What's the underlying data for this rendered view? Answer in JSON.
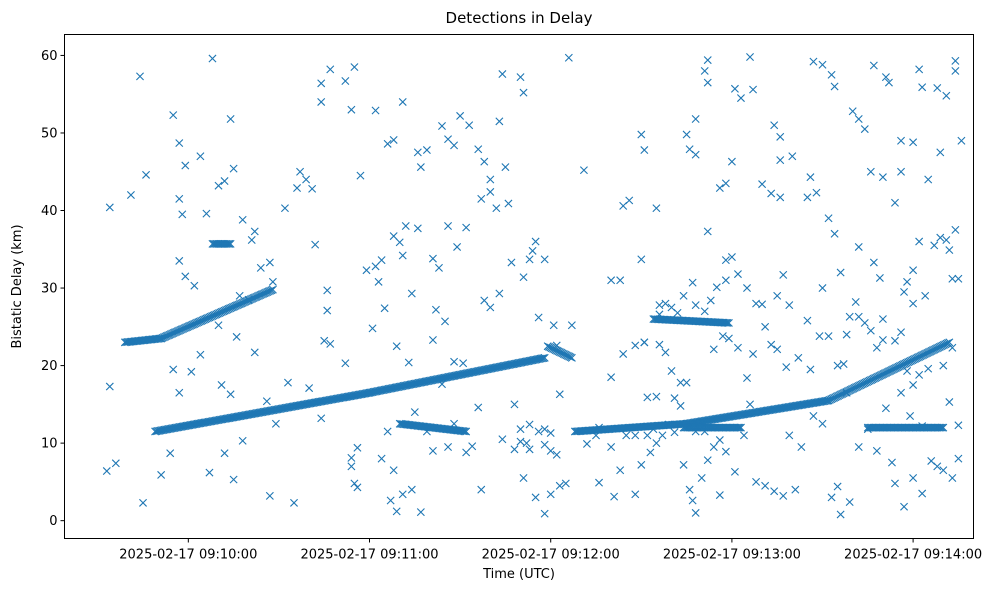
{
  "chart_data": {
    "type": "scatter",
    "title": "Detections in Delay",
    "xlabel": "Time (UTC)",
    "ylabel": "Bistatic Delay (km)",
    "x_ticks": [
      "2025-02-17 09:10:00",
      "2025-02-17 09:11:00",
      "2025-02-17 09:12:00",
      "2025-02-17 09:13:00",
      "2025-02-17 09:14:00"
    ],
    "y_ticks": [
      "0",
      "10",
      "20",
      "30",
      "40",
      "50",
      "60"
    ],
    "x_range_seconds_after_0910": [
      -41,
      260
    ],
    "y_range": [
      -2.3,
      62.7
    ],
    "marker": "x",
    "color": "#1f77b4",
    "grid": false,
    "tracks": [
      {
        "t_start": -11,
        "t_end": 60,
        "delay_start": 11.5,
        "delay_end": 16.5
      },
      {
        "t_start": 60,
        "t_end": 118,
        "delay_start": 16.5,
        "delay_end": 21.0
      },
      {
        "t_start": 128,
        "t_end": 165,
        "delay_start": 11.5,
        "delay_end": 12.5
      },
      {
        "t_start": 165,
        "t_end": 212,
        "delay_start": 12.5,
        "delay_end": 15.5
      },
      {
        "t_start": 212,
        "t_end": 252,
        "delay_start": 15.5,
        "delay_end": 23.0
      },
      {
        "t_start": -21,
        "t_end": -9,
        "delay_start": 23.0,
        "delay_end": 23.5
      },
      {
        "t_start": -9,
        "t_end": 28,
        "delay_start": 23.5,
        "delay_end": 29.8
      },
      {
        "t_start": 70,
        "t_end": 92,
        "delay_start": 12.5,
        "delay_end": 11.5
      },
      {
        "t_start": 154,
        "t_end": 179,
        "delay_start": 26.0,
        "delay_end": 25.5
      },
      {
        "t_start": 164,
        "t_end": 183,
        "delay_start": 12.0,
        "delay_end": 12.0
      },
      {
        "t_start": 225,
        "t_end": 250,
        "delay_start": 12.0,
        "delay_end": 12.0
      },
      {
        "t_start": 119,
        "t_end": 127,
        "delay_start": 22.5,
        "delay_end": 21.0
      },
      {
        "t_start": 8,
        "t_end": 14,
        "delay_start": 35.7,
        "delay_end": 35.7
      }
    ],
    "clutter_points": [
      [
        -16,
        57.3
      ],
      [
        -5,
        52.3
      ],
      [
        -3,
        48.7
      ],
      [
        -1,
        45.8
      ],
      [
        8,
        59.6
      ],
      [
        14,
        51.8
      ],
      [
        15,
        45.4
      ],
      [
        -14,
        44.6
      ],
      [
        -19,
        42.0
      ],
      [
        -26,
        40.4
      ],
      [
        -3,
        41.5
      ],
      [
        -2,
        39.5
      ],
      [
        4,
        47.0
      ],
      [
        6,
        39.6
      ],
      [
        10,
        43.2
      ],
      [
        12,
        43.8
      ],
      [
        2,
        30.3
      ],
      [
        -3,
        33.5
      ],
      [
        -1,
        31.5
      ],
      [
        18,
        38.8
      ],
      [
        21,
        36.2
      ],
      [
        22,
        37.3
      ],
      [
        17,
        29.0
      ],
      [
        20,
        28.5
      ],
      [
        24,
        32.6
      ],
      [
        27,
        33.3
      ],
      [
        28,
        30.8
      ],
      [
        10,
        25.2
      ],
      [
        16,
        23.7
      ],
      [
        22,
        21.7
      ],
      [
        4,
        21.4
      ],
      [
        1,
        19.2
      ],
      [
        -3,
        16.5
      ],
      [
        -5,
        19.5
      ],
      [
        11,
        17.5
      ],
      [
        14,
        16.3
      ],
      [
        26,
        15.4
      ],
      [
        33,
        17.8
      ],
      [
        29,
        12.5
      ],
      [
        18,
        10.3
      ],
      [
        12,
        8.7
      ],
      [
        7,
        6.2
      ],
      [
        15,
        5.3
      ],
      [
        27,
        3.2
      ],
      [
        35,
        2.3
      ],
      [
        -27,
        6.4
      ],
      [
        -24,
        7.4
      ],
      [
        -15,
        2.3
      ],
      [
        -26,
        17.3
      ],
      [
        -9,
        5.9
      ],
      [
        -6,
        8.7
      ],
      [
        32,
        40.3
      ],
      [
        36,
        42.9
      ],
      [
        39,
        44.0
      ],
      [
        41,
        42.8
      ],
      [
        37,
        45.0
      ],
      [
        44,
        56.4
      ],
      [
        44,
        54.0
      ],
      [
        47,
        58.2
      ],
      [
        52,
        56.7
      ],
      [
        55,
        58.5
      ],
      [
        54,
        53.0
      ],
      [
        57,
        44.5
      ],
      [
        42,
        35.6
      ],
      [
        46,
        29.7
      ],
      [
        45,
        23.2
      ],
      [
        46,
        27.1
      ],
      [
        47,
        22.8
      ],
      [
        52,
        20.3
      ],
      [
        40,
        17.1
      ],
      [
        44,
        13.2
      ],
      [
        54,
        8.1
      ],
      [
        56,
        9.4
      ],
      [
        55,
        4.8
      ],
      [
        56,
        4.3
      ],
      [
        54,
        7.0
      ],
      [
        59,
        32.3
      ],
      [
        62,
        32.8
      ],
      [
        64,
        33.6
      ],
      [
        63,
        30.8
      ],
      [
        61,
        24.8
      ],
      [
        65,
        27.4
      ],
      [
        68,
        36.7
      ],
      [
        72,
        38.0
      ],
      [
        70,
        35.9
      ],
      [
        71,
        34.2
      ],
      [
        74,
        29.3
      ],
      [
        76,
        37.7
      ],
      [
        69,
        22.5
      ],
      [
        73,
        20.4
      ],
      [
        75,
        14.0
      ],
      [
        66,
        11.5
      ],
      [
        64,
        8.0
      ],
      [
        68,
        6.5
      ],
      [
        67,
        2.6
      ],
      [
        69,
        1.2
      ],
      [
        71,
        3.4
      ],
      [
        74,
        4.0
      ],
      [
        77,
        1.1
      ],
      [
        62,
        52.9
      ],
      [
        66,
        48.6
      ],
      [
        68,
        49.1
      ],
      [
        71,
        54.0
      ],
      [
        76,
        47.5
      ],
      [
        77,
        45.6
      ],
      [
        79,
        47.8
      ],
      [
        84,
        50.9
      ],
      [
        86,
        49.2
      ],
      [
        88,
        48.4
      ],
      [
        90,
        52.2
      ],
      [
        93,
        51.0
      ],
      [
        96,
        47.9
      ],
      [
        98,
        46.3
      ],
      [
        86,
        38.0
      ],
      [
        89,
        35.3
      ],
      [
        92,
        37.8
      ],
      [
        97,
        41.5
      ],
      [
        100,
        42.4
      ],
      [
        103,
        51.5
      ],
      [
        102,
        40.3
      ],
      [
        105,
        45.6
      ],
      [
        98,
        28.4
      ],
      [
        100,
        27.5
      ],
      [
        103,
        29.3
      ],
      [
        106,
        40.9
      ],
      [
        107,
        33.3
      ],
      [
        110,
        57.2
      ],
      [
        111,
        55.2
      ],
      [
        111,
        31.4
      ],
      [
        114,
        34.8
      ],
      [
        115,
        36.0
      ],
      [
        113,
        33.7
      ],
      [
        118,
        33.7
      ],
      [
        116,
        26.2
      ],
      [
        121,
        25.2
      ],
      [
        122,
        22.6
      ],
      [
        126,
        59.7
      ],
      [
        104,
        57.6
      ],
      [
        100,
        44.0
      ],
      [
        81,
        33.8
      ],
      [
        83,
        32.6
      ],
      [
        82,
        27.2
      ],
      [
        85,
        25.7
      ],
      [
        81,
        23.3
      ],
      [
        84,
        17.6
      ],
      [
        88,
        20.5
      ],
      [
        91,
        20.3
      ],
      [
        96,
        14.6
      ],
      [
        79,
        11.5
      ],
      [
        81,
        9.0
      ],
      [
        86,
        9.5
      ],
      [
        88,
        12.5
      ],
      [
        92,
        8.8
      ],
      [
        94,
        9.6
      ],
      [
        97,
        4.0
      ],
      [
        104,
        10.5
      ],
      [
        108,
        15.0
      ],
      [
        110,
        11.8
      ],
      [
        112,
        10.0
      ],
      [
        113,
        9.2
      ],
      [
        116,
        11.5
      ],
      [
        118,
        11.8
      ],
      [
        120,
        11.3
      ],
      [
        111,
        5.5
      ],
      [
        115,
        3.0
      ],
      [
        118,
        0.9
      ],
      [
        120,
        3.4
      ],
      [
        123,
        4.5
      ],
      [
        125,
        4.8
      ],
      [
        123,
        16.3
      ],
      [
        127,
        25.2
      ],
      [
        131,
        45.2
      ],
      [
        136,
        4.9
      ],
      [
        141,
        3.1
      ],
      [
        143,
        6.5
      ],
      [
        148,
        3.4
      ],
      [
        150,
        7.2
      ],
      [
        153,
        8.8
      ],
      [
        155,
        10.0
      ],
      [
        140,
        18.5
      ],
      [
        144,
        21.5
      ],
      [
        148,
        22.6
      ],
      [
        151,
        23.0
      ],
      [
        152,
        15.9
      ],
      [
        155,
        16.0
      ],
      [
        160,
        19.3
      ],
      [
        163,
        17.8
      ],
      [
        161,
        15.8
      ],
      [
        164,
        7.2
      ],
      [
        166,
        4.0
      ],
      [
        168,
        1.0
      ],
      [
        167,
        2.6
      ],
      [
        170,
        5.5
      ],
      [
        172,
        7.8
      ],
      [
        176,
        3.3
      ],
      [
        178,
        8.9
      ],
      [
        181,
        6.3
      ],
      [
        184,
        11.0
      ],
      [
        186,
        15.0
      ],
      [
        188,
        5.0
      ],
      [
        191,
        4.5
      ],
      [
        194,
        3.8
      ],
      [
        197,
        3.2
      ],
      [
        199,
        11.0
      ],
      [
        201,
        4.0
      ],
      [
        203,
        9.5
      ],
      [
        207,
        13.5
      ],
      [
        210,
        12.5
      ],
      [
        213,
        3.0
      ],
      [
        216,
        0.8
      ],
      [
        215,
        4.4
      ],
      [
        219,
        2.4
      ],
      [
        222,
        9.5
      ],
      [
        225,
        11.8
      ],
      [
        228,
        9.0
      ],
      [
        233,
        7.5
      ],
      [
        234,
        4.8
      ],
      [
        237,
        1.8
      ],
      [
        240,
        5.5
      ],
      [
        243,
        3.5
      ],
      [
        246,
        7.7
      ],
      [
        248,
        7.0
      ],
      [
        250,
        6.5
      ],
      [
        253,
        5.5
      ],
      [
        255,
        12.3
      ],
      [
        255,
        8.0
      ],
      [
        231,
        14.5
      ],
      [
        236,
        16.5
      ],
      [
        239,
        13.5
      ],
      [
        243,
        12.2
      ],
      [
        252,
        15.3
      ],
      [
        237,
        29.5
      ],
      [
        240,
        28.0
      ],
      [
        244,
        29.0
      ],
      [
        247,
        35.5
      ],
      [
        249,
        36.5
      ],
      [
        251,
        36.2
      ],
      [
        252,
        34.9
      ],
      [
        253,
        31.2
      ],
      [
        255,
        31.2
      ],
      [
        254,
        37.5
      ],
      [
        242,
        36.0
      ],
      [
        240,
        32.3
      ],
      [
        238,
        30.8
      ],
      [
        226,
        45.0
      ],
      [
        230,
        44.3
      ],
      [
        234,
        41.0
      ],
      [
        227,
        33.3
      ],
      [
        229,
        31.3
      ],
      [
        222,
        35.3
      ],
      [
        221,
        28.2
      ],
      [
        218,
        24.0
      ],
      [
        216,
        32.0
      ],
      [
        212,
        39.0
      ],
      [
        214,
        37.0
      ],
      [
        208,
        42.3
      ],
      [
        206,
        44.3
      ],
      [
        205,
        41.7
      ],
      [
        207,
        59.2
      ],
      [
        210,
        58.8
      ],
      [
        213,
        57.5
      ],
      [
        214,
        56.0
      ],
      [
        227,
        58.7
      ],
      [
        231,
        57.2
      ],
      [
        232,
        56.5
      ],
      [
        236,
        49.0
      ],
      [
        240,
        48.8
      ],
      [
        242,
        58.2
      ],
      [
        243,
        55.9
      ],
      [
        248,
        55.8
      ],
      [
        254,
        59.3
      ],
      [
        254,
        58.0
      ],
      [
        256,
        49.0
      ],
      [
        251,
        54.8
      ],
      [
        249,
        47.5
      ],
      [
        245,
        44.0
      ],
      [
        236,
        45.0
      ],
      [
        224,
        50.5
      ],
      [
        222,
        51.8
      ],
      [
        220,
        52.8
      ],
      [
        200,
        47.0
      ],
      [
        196,
        49.5
      ],
      [
        194,
        51.0
      ],
      [
        196,
        46.5
      ],
      [
        193,
        42.2
      ],
      [
        190,
        43.4
      ],
      [
        186,
        59.8
      ],
      [
        187,
        55.6
      ],
      [
        183,
        54.5
      ],
      [
        181,
        55.7
      ],
      [
        180,
        46.3
      ],
      [
        178,
        43.5
      ],
      [
        176,
        42.9
      ],
      [
        172,
        56.5
      ],
      [
        171,
        58.0
      ],
      [
        172,
        59.4
      ],
      [
        168,
        51.8
      ],
      [
        168,
        47.2
      ],
      [
        165,
        49.8
      ],
      [
        166,
        47.9
      ],
      [
        150,
        49.8
      ],
      [
        151,
        47.8
      ],
      [
        155,
        40.3
      ],
      [
        144,
        40.6
      ],
      [
        146,
        41.3
      ],
      [
        140,
        31.0
      ],
      [
        143,
        31.0
      ],
      [
        150,
        33.7
      ],
      [
        172,
        37.3
      ],
      [
        178,
        33.6
      ],
      [
        180,
        34.0
      ],
      [
        182,
        31.8
      ],
      [
        185,
        30.0
      ],
      [
        188,
        28.0
      ],
      [
        190,
        27.9
      ],
      [
        191,
        25.0
      ],
      [
        193,
        22.7
      ],
      [
        195,
        29.0
      ],
      [
        197,
        31.7
      ],
      [
        195,
        22.1
      ],
      [
        196,
        41.7
      ],
      [
        199,
        27.8
      ],
      [
        198,
        19.8
      ],
      [
        202,
        21.0
      ],
      [
        205,
        25.8
      ],
      [
        206,
        19.5
      ],
      [
        210,
        30.0
      ],
      [
        209,
        23.8
      ],
      [
        212,
        23.8
      ],
      [
        215,
        20.0
      ],
      [
        217,
        20.2
      ],
      [
        218,
        16.5
      ],
      [
        219,
        26.3
      ],
      [
        222,
        26.3
      ],
      [
        224,
        25.5
      ],
      [
        226,
        24.5
      ],
      [
        228,
        22.3
      ],
      [
        230,
        26.0
      ],
      [
        230,
        23.3
      ],
      [
        234,
        23.2
      ],
      [
        236,
        24.3
      ],
      [
        238,
        19.3
      ],
      [
        240,
        17.5
      ],
      [
        242,
        18.8
      ],
      [
        245,
        19.6
      ],
      [
        250,
        20.0
      ],
      [
        253,
        22.3
      ],
      [
        178,
        31.0
      ],
      [
        175,
        30.1
      ],
      [
        173,
        28.4
      ],
      [
        171,
        27.0
      ],
      [
        167,
        30.7
      ],
      [
        168,
        27.8
      ],
      [
        164,
        29.0
      ],
      [
        160,
        27.5
      ],
      [
        162,
        26.8
      ],
      [
        158,
        28.0
      ],
      [
        156,
        27.8
      ],
      [
        156,
        26.6
      ],
      [
        151,
        23.0
      ],
      [
        156,
        22.7
      ],
      [
        158,
        21.7
      ],
      [
        174,
        22.1
      ],
      [
        177,
        23.8
      ],
      [
        179,
        23.5
      ],
      [
        182,
        22.3
      ],
      [
        187,
        21.5
      ],
      [
        185,
        18.4
      ],
      [
        165,
        17.8
      ],
      [
        163,
        14.8
      ],
      [
        168,
        11.5
      ],
      [
        171,
        11.5
      ],
      [
        174,
        9.5
      ],
      [
        176,
        10.4
      ],
      [
        140,
        9.5
      ],
      [
        135,
        11.0
      ],
      [
        136,
        12.0
      ],
      [
        132,
        9.9
      ],
      [
        122,
        8.5
      ],
      [
        120,
        9.0
      ],
      [
        118,
        9.8
      ],
      [
        108,
        9.2
      ],
      [
        110,
        10.2
      ],
      [
        113,
        12.4
      ],
      [
        145,
        11.0
      ],
      [
        148,
        11.0
      ],
      [
        152,
        11.0
      ],
      [
        154,
        11.8
      ],
      [
        157,
        11.0
      ],
      [
        159,
        12.4
      ],
      [
        161,
        11.4
      ]
    ]
  }
}
